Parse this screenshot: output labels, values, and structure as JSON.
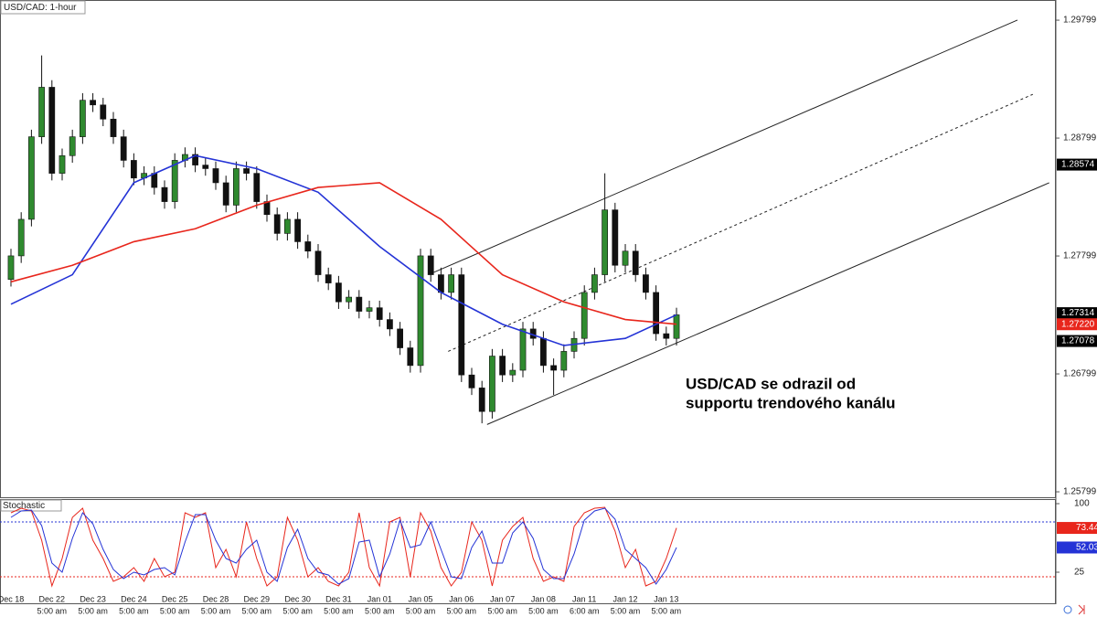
{
  "chart_data": [
    {
      "type": "candlestick",
      "title": "USD/CAD: 1-hour",
      "categories": [
        "Dec 18",
        "Dec 22",
        "Dec 23",
        "Dec 24",
        "Dec 25",
        "Dec 28",
        "Dec 29",
        "Dec 30",
        "Dec 31",
        "Jan 01",
        "Jan 05",
        "Jan 06",
        "Jan 07",
        "Jan 08",
        "Jan 11",
        "Jan 12",
        "Jan 13"
      ],
      "time_labels": [
        null,
        "5:00 am",
        "5:00 am",
        "5:00 am",
        "5:00 am",
        "5:00 am",
        "5:00 am",
        "5:00 am",
        "5:00 am",
        "5:00 am",
        "5:00 am",
        "5:00 am",
        "5:00 am",
        "5:00 am",
        "6:00 am",
        "5:00 am",
        "5:00 am"
      ],
      "open": [
        1.276,
        1.278,
        1.2811,
        1.2881,
        1.2923,
        1.285,
        1.2865,
        1.2881,
        1.2912,
        1.2908,
        1.2896,
        1.2881,
        1.2861,
        1.2846,
        1.285,
        1.2838,
        1.2826,
        1.2861,
        1.2866,
        1.2857,
        1.2854,
        1.2842,
        1.2823,
        1.2854,
        1.285,
        1.2826,
        1.2815,
        1.2799,
        1.2811,
        1.2792,
        1.2784,
        1.2764,
        1.2757,
        1.2741,
        1.2745,
        1.2733,
        1.2736,
        1.2726,
        1.2718,
        1.2702,
        1.2687,
        1.278,
        1.2764,
        1.2749,
        1.2764,
        1.2679,
        1.2668,
        1.2648,
        1.2695,
        1.2679,
        1.2683,
        1.2718,
        1.271,
        1.2687,
        1.2683,
        1.2699,
        1.271,
        1.2749,
        1.2764,
        1.2819,
        1.2772,
        1.2784,
        1.2764,
        1.2749,
        1.2714,
        1.271
      ],
      "high": [
        1.2786,
        1.2817,
        1.2887,
        1.295,
        1.2929,
        1.2871,
        1.2887,
        1.2918,
        1.2918,
        1.2914,
        1.2902,
        1.2887,
        1.2867,
        1.2856,
        1.2856,
        1.2844,
        1.2867,
        1.2872,
        1.2872,
        1.2863,
        1.286,
        1.2848,
        1.286,
        1.286,
        1.2856,
        1.2832,
        1.2821,
        1.2817,
        1.2817,
        1.2798,
        1.279,
        1.277,
        1.2763,
        1.2751,
        1.2751,
        1.2742,
        1.2742,
        1.2732,
        1.2724,
        1.2708,
        1.2786,
        1.2786,
        1.277,
        1.277,
        1.277,
        1.2685,
        1.2674,
        1.2701,
        1.2701,
        1.2689,
        1.2724,
        1.2724,
        1.2716,
        1.2693,
        1.2705,
        1.2716,
        1.2755,
        1.277,
        1.285,
        1.2825,
        1.279,
        1.279,
        1.277,
        1.2755,
        1.272,
        1.2736
      ],
      "low": [
        1.2754,
        1.2774,
        1.2805,
        1.2875,
        1.2844,
        1.2844,
        1.2859,
        1.2875,
        1.2902,
        1.289,
        1.2875,
        1.2855,
        1.284,
        1.284,
        1.2832,
        1.282,
        1.282,
        1.2855,
        1.2851,
        1.2848,
        1.2836,
        1.2817,
        1.2817,
        1.2844,
        1.282,
        1.2809,
        1.2793,
        1.2793,
        1.2786,
        1.2778,
        1.2758,
        1.2751,
        1.2735,
        1.2735,
        1.2727,
        1.2727,
        1.272,
        1.2712,
        1.2696,
        1.2681,
        1.2681,
        1.2758,
        1.2743,
        1.2743,
        1.2673,
        1.2662,
        1.2638,
        1.2642,
        1.2673,
        1.2673,
        1.2677,
        1.2704,
        1.2681,
        1.2662,
        1.2677,
        1.2693,
        1.2704,
        1.2743,
        1.2758,
        1.2766,
        1.2766,
        1.2758,
        1.2743,
        1.2708,
        1.2704,
        1.2704
      ],
      "close": [
        1.278,
        1.2811,
        1.2881,
        1.2923,
        1.285,
        1.2865,
        1.2881,
        1.2912,
        1.2908,
        1.2896,
        1.2881,
        1.2861,
        1.2846,
        1.285,
        1.2838,
        1.2826,
        1.2861,
        1.2866,
        1.2857,
        1.2854,
        1.2842,
        1.2823,
        1.2854,
        1.285,
        1.2826,
        1.2815,
        1.2799,
        1.2811,
        1.2792,
        1.2784,
        1.2764,
        1.2757,
        1.2741,
        1.2745,
        1.2733,
        1.2736,
        1.2726,
        1.2718,
        1.2702,
        1.2687,
        1.278,
        1.2764,
        1.2749,
        1.2764,
        1.2679,
        1.2668,
        1.2648,
        1.2695,
        1.2679,
        1.2683,
        1.2718,
        1.271,
        1.2687,
        1.2683,
        1.2699,
        1.271,
        1.2749,
        1.2764,
        1.2819,
        1.2772,
        1.2784,
        1.2764,
        1.2749,
        1.2714,
        1.271,
        1.273
      ],
      "up_color": "#2f8a2f",
      "down_color": "#111111",
      "series": [
        {
          "color": "#2433d6",
          "x": [
            0,
            6,
            12,
            18,
            24,
            30,
            36,
            42,
            48,
            54,
            60,
            65
          ],
          "values": [
            1.2739,
            1.2764,
            1.2842,
            1.2865,
            1.2854,
            1.2834,
            1.2788,
            1.2749,
            1.2722,
            1.2704,
            1.271,
            1.273
          ]
        },
        {
          "color": "#e8261c",
          "x": [
            0,
            6,
            12,
            18,
            24,
            30,
            36,
            42,
            48,
            54,
            60,
            65
          ],
          "values": [
            1.2758,
            1.2772,
            1.2792,
            1.2803,
            1.2823,
            1.2838,
            1.2842,
            1.2811,
            1.2764,
            1.2741,
            1.2726,
            1.2722
          ]
        }
      ],
      "channel": [
        {
          "x": [
            41.3,
            98.3
          ],
          "y": [
            1.2766,
            1.298
          ],
          "dashed": false
        },
        {
          "x": [
            42.7,
            99.8
          ],
          "y": [
            1.2699,
            1.2917
          ],
          "dashed": true
        },
        {
          "x": [
            46.5,
            101.4
          ],
          "y": [
            1.2637,
            1.2842
          ],
          "dashed": false
        }
      ],
      "annotation": [
        "USD/CAD se odrazil od",
        "supportu trendového kanálu"
      ],
      "xlim": [
        -1.07,
        102.05
      ],
      "ylim": [
        1.25745,
        1.2997
      ],
      "yticks": [
        1.25799,
        1.26799,
        1.27799,
        1.28799,
        1.29799
      ],
      "price_markers": [
        {
          "value": 1.28574,
          "label": "1.28574",
          "color": "#000000"
        },
        {
          "value": 1.27314,
          "label": "1.27314",
          "color": "#000000"
        },
        {
          "value": 1.2722,
          "label": "1.27220",
          "color": "#e8261c"
        },
        {
          "value": 1.27078,
          "label": "1.27078",
          "color": "#000000"
        }
      ]
    },
    {
      "type": "line",
      "title": "Stochastic",
      "series": [
        {
          "color": "#e8261c",
          "values": [
            90,
            95,
            92,
            60,
            10,
            40,
            85,
            95,
            60,
            40,
            15,
            20,
            30,
            15,
            40,
            20,
            25,
            90,
            85,
            90,
            30,
            50,
            20,
            80,
            40,
            10,
            20,
            85,
            60,
            20,
            30,
            15,
            10,
            25,
            90,
            30,
            10,
            80,
            85,
            20,
            90,
            70,
            30,
            10,
            25,
            80,
            60,
            10,
            60,
            75,
            85,
            40,
            15,
            20,
            15,
            75,
            90,
            95,
            96,
            70,
            30,
            50,
            10,
            15,
            40,
            73.44
          ]
        },
        {
          "color": "#2433d6",
          "values": [
            85,
            92,
            93,
            76,
            35,
            25,
            62,
            90,
            78,
            50,
            28,
            18,
            25,
            22,
            28,
            30,
            22,
            58,
            88,
            88,
            60,
            40,
            35,
            50,
            60,
            25,
            15,
            52,
            72,
            40,
            25,
            22,
            12,
            18,
            58,
            60,
            20,
            45,
            82,
            52,
            55,
            80,
            50,
            20,
            18,
            52,
            70,
            35,
            35,
            68,
            80,
            62,
            28,
            18,
            18,
            45,
            82,
            92,
            95,
            83,
            50,
            40,
            30,
            12,
            28,
            52.03
          ]
        }
      ],
      "levels": [
        {
          "value": 80,
          "color": "#2433d6"
        },
        {
          "value": 20,
          "color": "#e8261c"
        }
      ],
      "xlim": [
        -1.07,
        102.05
      ],
      "ylim": [
        -9,
        104
      ],
      "yticks": [
        100,
        25
      ],
      "markers": [
        {
          "value": 73.44,
          "color": "#e8261c"
        },
        {
          "value": 52.03,
          "color": "#2433d6"
        }
      ]
    }
  ]
}
